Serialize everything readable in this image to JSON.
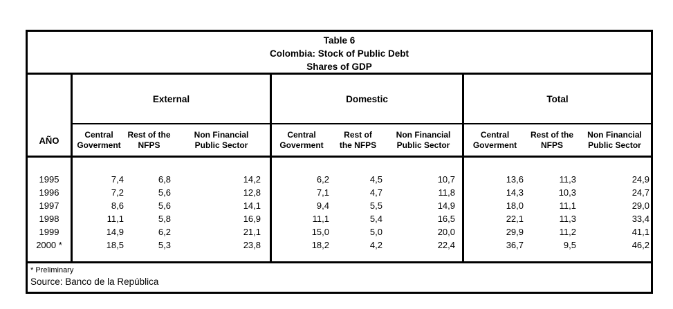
{
  "title": {
    "line1": "Table 6",
    "line2": "Colombia: Stock of Public Debt",
    "line3": "Shares of GDP"
  },
  "columns": {
    "year_header": "AÑO",
    "groups": [
      {
        "label": "External",
        "subcols": [
          [
            "Central",
            "Goverment"
          ],
          [
            "Rest of the",
            "NFPS"
          ],
          [
            "Non Financial",
            "Public Sector"
          ]
        ]
      },
      {
        "label": "Domestic",
        "subcols": [
          [
            "Central",
            "Goverment"
          ],
          [
            "Rest of",
            "the NFPS"
          ],
          [
            "Non Financial",
            "Public Sector"
          ]
        ]
      },
      {
        "label": "Total",
        "subcols": [
          [
            "Central",
            "Goverment"
          ],
          [
            "Rest of the",
            "NFPS"
          ],
          [
            "Non Financial",
            "Public Sector"
          ]
        ]
      }
    ]
  },
  "rows": [
    {
      "year": "1995",
      "ext": [
        "7,4",
        "6,8",
        "14,2"
      ],
      "dom": [
        "6,2",
        "4,5",
        "10,7"
      ],
      "tot": [
        "13,6",
        "11,3",
        "24,9"
      ]
    },
    {
      "year": "1996",
      "ext": [
        "7,2",
        "5,6",
        "12,8"
      ],
      "dom": [
        "7,1",
        "4,7",
        "11,8"
      ],
      "tot": [
        "14,3",
        "10,3",
        "24,7"
      ]
    },
    {
      "year": "1997",
      "ext": [
        "8,6",
        "5,6",
        "14,1"
      ],
      "dom": [
        "9,4",
        "5,5",
        "14,9"
      ],
      "tot": [
        "18,0",
        "11,1",
        "29,0"
      ]
    },
    {
      "year": "1998",
      "ext": [
        "11,1",
        "5,8",
        "16,9"
      ],
      "dom": [
        "11,1",
        "5,4",
        "16,5"
      ],
      "tot": [
        "22,1",
        "11,3",
        "33,4"
      ]
    },
    {
      "year": "1999",
      "ext": [
        "14,9",
        "6,2",
        "21,1"
      ],
      "dom": [
        "15,0",
        "5,0",
        "20,0"
      ],
      "tot": [
        "29,9",
        "11,2",
        "41,1"
      ]
    },
    {
      "year": "2000 *",
      "ext": [
        "18,5",
        "5,3",
        "23,8"
      ],
      "dom": [
        "18,2",
        "4,2",
        "22,4"
      ],
      "tot": [
        "36,7",
        "9,5",
        "46,2"
      ]
    }
  ],
  "footer": {
    "note": "* Preliminary",
    "source": "Source: Banco de la República"
  },
  "colors": {
    "border": "#000000",
    "text": "#000000",
    "background": "#ffffff"
  }
}
